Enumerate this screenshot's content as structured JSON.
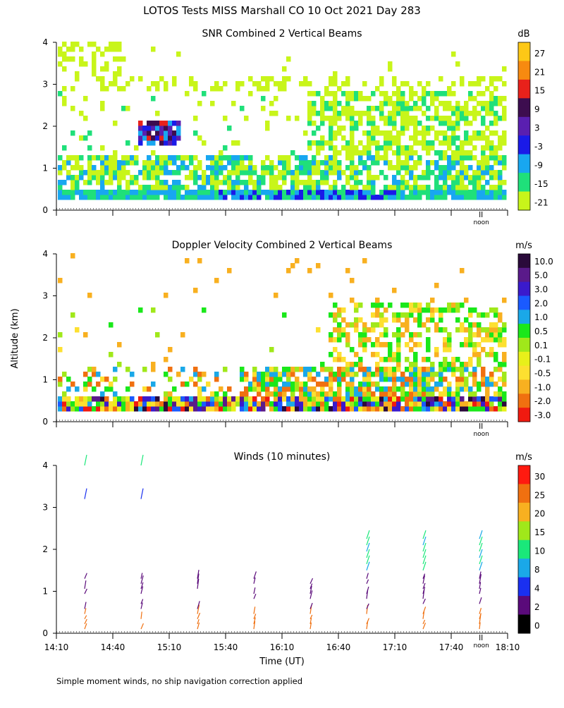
{
  "figure": {
    "title": "LOTOS Tests MISS Marshall CO  10 Oct 2021 Day 283",
    "shared_ylabel": "Altitude (km)",
    "shared_xlabel": "Time (UT)",
    "footnote": "Simple moment winds, no ship navigation correction applied",
    "noon_label": "noon"
  },
  "chart_data": [
    {
      "type": "heatmap",
      "title": "SNR Combined 2 Vertical Beams",
      "ylabel": "Altitude (km)",
      "ylim": [
        0,
        4
      ],
      "yticks": [
        "0",
        "1",
        "2",
        "3",
        "4"
      ],
      "xlim_minutes_utc": [
        850,
        1090
      ],
      "xticks": [
        "14:10",
        "14:40",
        "15:10",
        "15:40",
        "16:10",
        "16:40",
        "17:10",
        "17:40",
        "18:10"
      ],
      "colorbar": {
        "unit": "dB",
        "labels": [
          "27",
          "21",
          "15",
          "9",
          "3",
          "-3",
          "-9",
          "-15",
          "-21"
        ],
        "colors": [
          "#fdc816",
          "#f78a10",
          "#e8211b",
          "#3d0d4f",
          "#5a1fb0",
          "#1a1ae8",
          "#18a7f0",
          "#1fe07a",
          "#c8f51a"
        ]
      }
    },
    {
      "type": "heatmap",
      "title": "Doppler Velocity Combined 2 Vertical Beams",
      "ylabel": "Altitude (km)",
      "ylim": [
        0,
        4
      ],
      "yticks": [
        "0",
        "1",
        "2",
        "3",
        "4"
      ],
      "xlim_minutes_utc": [
        850,
        1090
      ],
      "xticks": [
        "14:10",
        "14:40",
        "15:10",
        "15:40",
        "16:10",
        "16:40",
        "17:10",
        "17:40",
        "18:10"
      ],
      "colorbar": {
        "unit": "m/s",
        "labels": [
          "10.0",
          "5.0",
          "3.0",
          "2.0",
          "1.0",
          "0.5",
          "0.1",
          "-0.1",
          "-0.5",
          "-1.0",
          "-2.0",
          "-3.0"
        ],
        "colors": [
          "#2a0a3a",
          "#5a1a8a",
          "#3a1acc",
          "#1a5aff",
          "#1aa8e8",
          "#1ae81a",
          "#a0e81a",
          "#e8f01a",
          "#fde030",
          "#f8b020",
          "#f07010",
          "#f01a10"
        ]
      }
    },
    {
      "type": "scatter",
      "title": "Winds (10 minutes)",
      "ylabel": "Altitude (km)",
      "xlabel": "Time (UT)",
      "ylim": [
        0,
        4
      ],
      "yticks": [
        "0",
        "1",
        "2",
        "3",
        "4"
      ],
      "xlim_minutes_utc": [
        850,
        1090
      ],
      "xticks": [
        "14:10",
        "14:40",
        "15:10",
        "15:40",
        "16:10",
        "16:40",
        "17:10",
        "17:40",
        "18:10"
      ],
      "colorbar": {
        "unit": "m/s",
        "labels": [
          "30",
          "25",
          "20",
          "15",
          "10",
          "8",
          "4",
          "2",
          "0"
        ],
        "colors": [
          "#ff1a10",
          "#f07010",
          "#f8b020",
          "#a0e81a",
          "#1ae87a",
          "#1aa8e8",
          "#1a30f0",
          "#5a0a7a",
          "#000000"
        ]
      },
      "wind_profiles_time_minutes": [
        865,
        895,
        925,
        955,
        985,
        1015,
        1045,
        1075
      ]
    }
  ]
}
